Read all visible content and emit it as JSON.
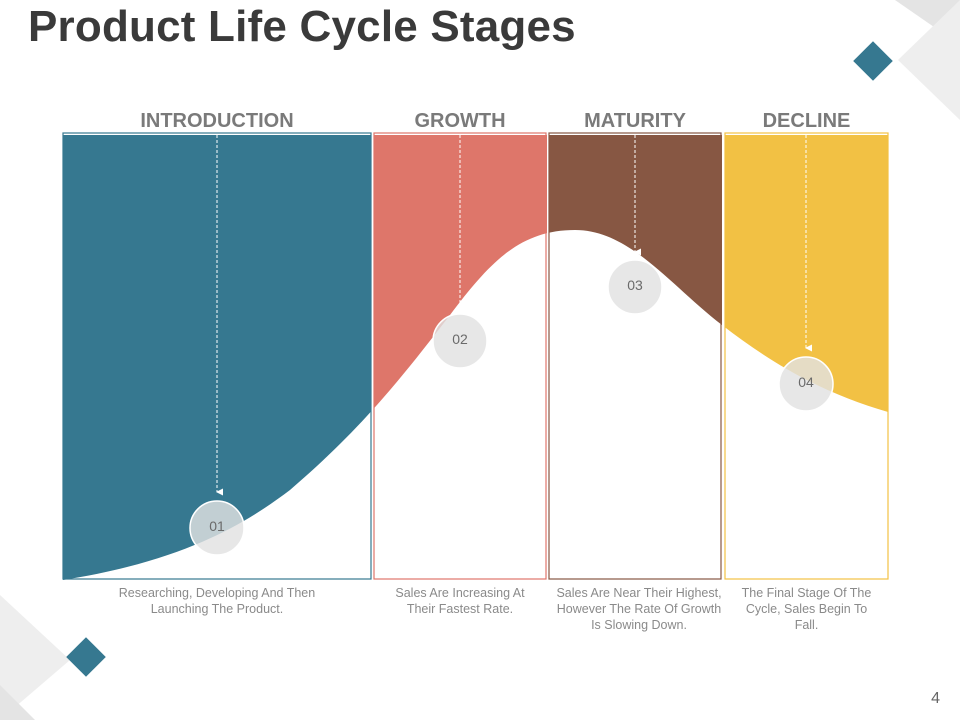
{
  "title": "Product Life Cycle Stages",
  "page_number": "4",
  "stages": [
    {
      "label": "INTRODUCTION",
      "number": "01",
      "description": "Researching, Developing And Then Launching The Product.",
      "color": "#367890"
    },
    {
      "label": "GROWTH",
      "number": "02",
      "description": "Sales Are Increasing At Their Fastest Rate.",
      "color": "#DE766A"
    },
    {
      "label": "MATURITY",
      "number": "03",
      "description": "Sales Are Near Their Highest, However The Rate Of Growth Is Slowing Down.",
      "color": "#875743"
    },
    {
      "label": "DECLINE",
      "number": "04",
      "description": "The Final Stage Of The Cycle, Sales Begin To Fall.",
      "color": "#F2C144"
    }
  ],
  "colors": {
    "title": "#3a3a3a",
    "label": "#7a7a7a",
    "accent_diamond": "#367890",
    "decor_gray": "#e3e3e3",
    "circle": "#e2e2e2"
  }
}
